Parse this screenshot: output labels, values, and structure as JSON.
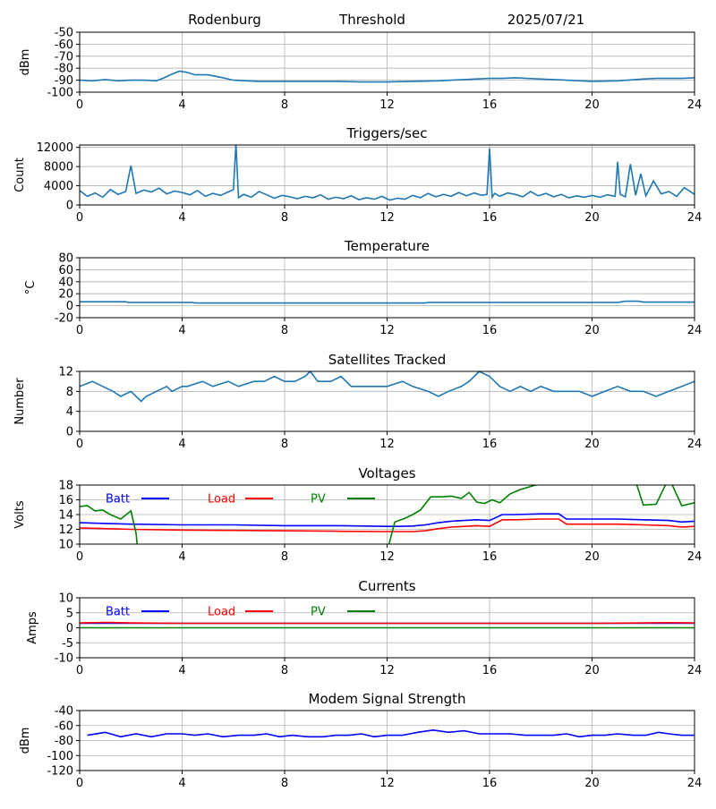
{
  "header": {
    "location": "Rodenburg",
    "trigger_mode": "Threshold",
    "date": "2025/07/21"
  },
  "x_axis": {
    "ticks": [
      0,
      4,
      8,
      12,
      16,
      20,
      24
    ],
    "range": [
      0,
      24
    ]
  },
  "chart_data": [
    {
      "id": "rf-noise",
      "type": "line",
      "title": "",
      "ylabel": "dBm",
      "ylim": [
        -100,
        -50
      ],
      "yticks": [
        -100,
        -90,
        -80,
        -70,
        -60,
        -50
      ],
      "grid": true,
      "series": [
        {
          "color": "#1f77b4",
          "x": [
            0,
            0.5,
            1,
            1.5,
            2,
            2.5,
            3,
            3.3,
            3.6,
            3.9,
            4.2,
            4.5,
            5,
            5.5,
            6,
            6.5,
            7,
            8,
            9,
            10,
            11,
            12,
            13,
            14,
            15,
            16,
            16.5,
            17,
            18,
            19,
            20,
            21,
            22,
            22.5,
            23,
            23.5,
            24
          ],
          "y": [
            -90,
            -90.5,
            -89.5,
            -90.5,
            -90,
            -90,
            -90.5,
            -88,
            -85,
            -82.5,
            -83.5,
            -85.5,
            -85.5,
            -87.5,
            -90,
            -90.5,
            -91,
            -91,
            -91,
            -91,
            -91.5,
            -91.5,
            -91,
            -90.5,
            -89.5,
            -88.5,
            -88.5,
            -88,
            -89,
            -90,
            -91,
            -90.5,
            -89,
            -88.5,
            -88.5,
            -88.5,
            -88
          ]
        }
      ]
    },
    {
      "id": "triggers",
      "type": "line",
      "title": "Triggers/sec",
      "ylabel": "Count",
      "ylim": [
        0,
        12500
      ],
      "yticks": [
        0,
        4000,
        8000,
        12000
      ],
      "grid": true,
      "series": [
        {
          "color": "#1f77b4",
          "x": [
            0,
            0.3,
            0.6,
            0.9,
            1.2,
            1.5,
            1.8,
            2,
            2.2,
            2.5,
            2.8,
            3.1,
            3.4,
            3.7,
            4,
            4.3,
            4.6,
            4.9,
            5.2,
            5.5,
            5.8,
            6,
            6.1,
            6.2,
            6.4,
            6.7,
            7,
            7.3,
            7.6,
            7.9,
            8.2,
            8.5,
            8.8,
            9.1,
            9.4,
            9.7,
            10,
            10.3,
            10.6,
            10.9,
            11.2,
            11.5,
            11.8,
            12.1,
            12.4,
            12.7,
            13,
            13.3,
            13.6,
            13.9,
            14.2,
            14.5,
            14.8,
            15.1,
            15.4,
            15.7,
            15.9,
            16,
            16.1,
            16.2,
            16.4,
            16.7,
            17,
            17.3,
            17.6,
            17.9,
            18.2,
            18.5,
            18.8,
            19.1,
            19.4,
            19.7,
            20,
            20.3,
            20.6,
            20.9,
            21,
            21.1,
            21.3,
            21.5,
            21.7,
            21.9,
            22.1,
            22.4,
            22.7,
            23,
            23.3,
            23.6,
            24
          ],
          "y": [
            3000,
            1800,
            2500,
            1600,
            3200,
            2200,
            2800,
            8200,
            2400,
            3100,
            2700,
            3500,
            2300,
            2900,
            2600,
            2100,
            3000,
            1800,
            2400,
            2000,
            2700,
            3200,
            12800,
            1500,
            2200,
            1600,
            2800,
            2100,
            1400,
            2000,
            1700,
            1300,
            1800,
            1500,
            2100,
            1200,
            1600,
            1300,
            1900,
            1100,
            1500,
            1200,
            1800,
            1000,
            1400,
            1200,
            2000,
            1500,
            2400,
            1700,
            2200,
            1800,
            2600,
            1900,
            2500,
            2000,
            2200,
            11800,
            1600,
            2400,
            1800,
            2500,
            2200,
            1700,
            2800,
            1900,
            2400,
            1700,
            2200,
            1500,
            1900,
            1600,
            2000,
            1600,
            2100,
            1800,
            9000,
            2200,
            1700,
            8500,
            2000,
            6500,
            1900,
            5000,
            2300,
            2800,
            1800,
            3600,
            2200
          ]
        }
      ]
    },
    {
      "id": "temperature",
      "type": "line",
      "title": "Temperature",
      "ylabel": "°C",
      "ylim": [
        -20,
        80
      ],
      "yticks": [
        -20,
        0,
        20,
        40,
        60,
        80
      ],
      "grid": true,
      "series": [
        {
          "color": "#1f77b4",
          "x": [
            0,
            1.8,
            1.9,
            4.4,
            4.5,
            13.5,
            13.6,
            21,
            21.3,
            21.8,
            22,
            24
          ],
          "y": [
            6.5,
            6.5,
            5.5,
            5.5,
            4.5,
            4.5,
            5.5,
            5.5,
            7.5,
            7.5,
            6,
            6
          ]
        }
      ]
    },
    {
      "id": "satellites",
      "type": "line",
      "title": "Satellites Tracked",
      "ylabel": "Number",
      "ylim": [
        0,
        12
      ],
      "yticks": [
        0,
        4,
        8,
        12
      ],
      "grid": true,
      "series": [
        {
          "color": "#1f77b4",
          "x": [
            0,
            0.5,
            0.9,
            1.3,
            1.6,
            2,
            2.4,
            2.6,
            3,
            3.4,
            3.6,
            4,
            4.2,
            4.8,
            5.2,
            5.8,
            6.2,
            6.8,
            7.2,
            7.6,
            8,
            8.4,
            8.8,
            9,
            9.3,
            9.8,
            10.2,
            10.6,
            11,
            11.5,
            12,
            12.6,
            13,
            13.6,
            14,
            14.4,
            14.9,
            15.2,
            15.6,
            16,
            16.4,
            16.8,
            17.2,
            17.6,
            18,
            18.5,
            19,
            19.5,
            20,
            20.5,
            21,
            21.5,
            22,
            22.5,
            23,
            23.5,
            24
          ],
          "y": [
            9,
            10,
            9,
            8,
            7,
            8,
            6,
            7,
            8,
            9,
            8,
            9,
            9,
            10,
            9,
            10,
            9,
            10,
            10,
            11,
            10,
            10,
            11,
            12,
            10,
            10,
            11,
            9,
            9,
            9,
            9,
            10,
            9,
            8,
            7,
            8,
            9,
            10,
            12,
            11,
            9,
            8,
            9,
            8,
            9,
            8,
            8,
            8,
            7,
            8,
            9,
            8,
            8,
            7,
            8,
            9,
            10
          ]
        }
      ]
    },
    {
      "id": "voltages",
      "type": "line",
      "title": "Voltages",
      "ylabel": "Volts",
      "ylim": [
        10,
        18
      ],
      "yticks": [
        10,
        12,
        14,
        16,
        18
      ],
      "grid": true,
      "legend": {
        "position": "top-left",
        "entries": [
          "Batt",
          "Load",
          "PV"
        ]
      },
      "series": [
        {
          "name": "Batt",
          "color": "#0000ff",
          "x": [
            0,
            1,
            2,
            4,
            6,
            8,
            10,
            12,
            12.5,
            13,
            13.5,
            14,
            14.5,
            15,
            15.5,
            16,
            16.5,
            17,
            18,
            18.7,
            19,
            20,
            21,
            22,
            23,
            23.5,
            24
          ],
          "y": [
            12.9,
            12.8,
            12.7,
            12.6,
            12.6,
            12.5,
            12.5,
            12.4,
            12.4,
            12.45,
            12.6,
            12.9,
            13.1,
            13.2,
            13.3,
            13.2,
            14,
            14,
            14.1,
            14.1,
            13.4,
            13.4,
            13.4,
            13.3,
            13.2,
            13,
            13.1
          ]
        },
        {
          "name": "Load",
          "color": "#ff0000",
          "x": [
            0,
            1,
            2,
            4,
            6,
            8,
            10,
            12,
            12.5,
            13,
            13.5,
            14,
            14.5,
            15,
            15.5,
            16,
            16.5,
            17,
            18,
            18.7,
            19,
            20,
            21,
            22,
            23,
            23.5,
            24
          ],
          "y": [
            12.2,
            12.1,
            12,
            11.9,
            11.85,
            11.8,
            11.75,
            11.7,
            11.7,
            11.7,
            11.8,
            12.1,
            12.3,
            12.4,
            12.5,
            12.4,
            13.3,
            13.3,
            13.4,
            13.4,
            12.7,
            12.7,
            12.7,
            12.6,
            12.5,
            12.3,
            12.4
          ]
        },
        {
          "name": "PV",
          "color": "#008000",
          "x": [
            0,
            0.3,
            0.6,
            0.9,
            1.2,
            1.6,
            2,
            2.2,
            2.3,
            12,
            12.3,
            12.7,
            13,
            13.3,
            13.7,
            14.1,
            14.5,
            14.9,
            15.2,
            15.5,
            15.8,
            16.1,
            16.4,
            16.8,
            17.2,
            17.6,
            18,
            18.3,
            21.7,
            22,
            22.5,
            23,
            23.5,
            24
          ],
          "y": [
            15.1,
            15.2,
            14.5,
            14.6,
            14,
            13.4,
            14.5,
            11.5,
            8,
            9,
            13,
            13.5,
            14,
            14.6,
            16.4,
            16.4,
            16.5,
            16.2,
            17,
            15.7,
            15.5,
            16,
            15.6,
            16.8,
            17.4,
            17.8,
            18.2,
            18.5,
            18.5,
            15.3,
            15.4,
            19,
            15.2,
            15.6
          ]
        }
      ]
    },
    {
      "id": "currents",
      "type": "line",
      "title": "Currents",
      "ylabel": "Amps",
      "ylim": [
        -10,
        10
      ],
      "yticks": [
        -10,
        -5,
        0,
        5,
        10
      ],
      "grid": true,
      "legend": {
        "position": "top-left",
        "entries": [
          "Batt",
          "Load",
          "PV"
        ]
      },
      "series": [
        {
          "name": "Batt",
          "color": "#0000ff",
          "x": [
            0,
            24
          ],
          "y": [
            1.5,
            1.5
          ]
        },
        {
          "name": "Load",
          "color": "#ff0000",
          "x": [
            0,
            1,
            2,
            4,
            8,
            12,
            16,
            20,
            23,
            24
          ],
          "y": [
            1.6,
            1.8,
            1.6,
            1.5,
            1.5,
            1.5,
            1.5,
            1.5,
            1.7,
            1.6
          ]
        },
        {
          "name": "PV",
          "color": "#008000",
          "x": [
            0,
            24
          ],
          "y": [
            0,
            0
          ]
        }
      ]
    },
    {
      "id": "modem",
      "type": "line",
      "title": "Modem Signal Strength",
      "ylabel": "dBm",
      "ylim": [
        -120,
        -40
      ],
      "yticks": [
        -120,
        -100,
        -80,
        -60,
        -40
      ],
      "grid": true,
      "series": [
        {
          "color": "#0000ff",
          "x": [
            0.3,
            1,
            1.6,
            2.2,
            2.8,
            3.4,
            4,
            4.5,
            5,
            5.6,
            6.2,
            6.8,
            7.3,
            7.8,
            8.3,
            8.9,
            9.5,
            10,
            10.5,
            11,
            11.5,
            12,
            12.6,
            13.2,
            13.8,
            14.4,
            15,
            15.6,
            16.2,
            16.8,
            17.4,
            18,
            18.5,
            19,
            19.5,
            20,
            20.5,
            21,
            21.6,
            22.1,
            22.6,
            23,
            23.5,
            24
          ],
          "y": [
            -73,
            -69,
            -75,
            -71,
            -75,
            -71,
            -71,
            -73,
            -71,
            -75,
            -73,
            -73,
            -71,
            -75,
            -73,
            -75,
            -75,
            -73,
            -73,
            -71,
            -75,
            -73,
            -73,
            -69,
            -66,
            -69,
            -67,
            -71,
            -71,
            -71,
            -73,
            -73,
            -73,
            -71,
            -75,
            -73,
            -73,
            -71,
            -73,
            -73,
            -69,
            -71,
            -73,
            -73
          ]
        }
      ]
    }
  ]
}
